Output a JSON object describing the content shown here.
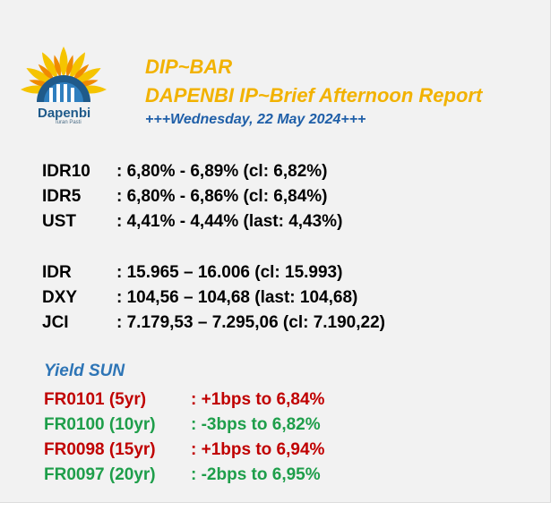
{
  "header": {
    "title": "DIP~BAR",
    "subtitle": "DAPENBI IP~Brief Afternoon Report",
    "date": "+++Wednesday, 22 May 2024+++"
  },
  "logo": {
    "name": "Dapenbi",
    "tagline": "Iuran Pasti"
  },
  "rates": [
    {
      "label": "IDR10",
      "value": ": 6,80% - 6,89% (cl: 6,82%)"
    },
    {
      "label": "IDR5",
      "value": ": 6,80% - 6,86% (cl: 6,84%)"
    },
    {
      "label": "UST",
      "value": ": 4,41% - 4,44% (last: 4,43%)"
    }
  ],
  "markets": [
    {
      "label": "IDR",
      "value": ": 15.965 – 16.006 (cl: 15.993)"
    },
    {
      "label": "DXY",
      "value": ": 104,56 – 104,68 (last: 104,68)"
    },
    {
      "label": "JCI",
      "value": ": 7.179,53 – 7.295,06 (cl: 7.190,22)"
    }
  ],
  "yield_sun": {
    "title": "Yield SUN",
    "items": [
      {
        "label": "FR0101 (5yr)",
        "value": ": +1bps to 6,84%",
        "color": "#c00000"
      },
      {
        "label": "FR0100 (10yr)",
        "value": ": -3bps to 6,82%",
        "color": "#1e9e4a"
      },
      {
        "label": "FR0098 (15yr)",
        "value": ": +1bps to 6,94%",
        "color": "#c00000"
      },
      {
        "label": "FR0097 (20yr)",
        "value": ": -2bps to 6,95%",
        "color": "#1e9e4a"
      }
    ]
  },
  "colors": {
    "title": "#f2b200",
    "date": "#1f5fa8",
    "yield_title": "#2e75b6",
    "up": "#c00000",
    "down": "#1e9e4a"
  }
}
